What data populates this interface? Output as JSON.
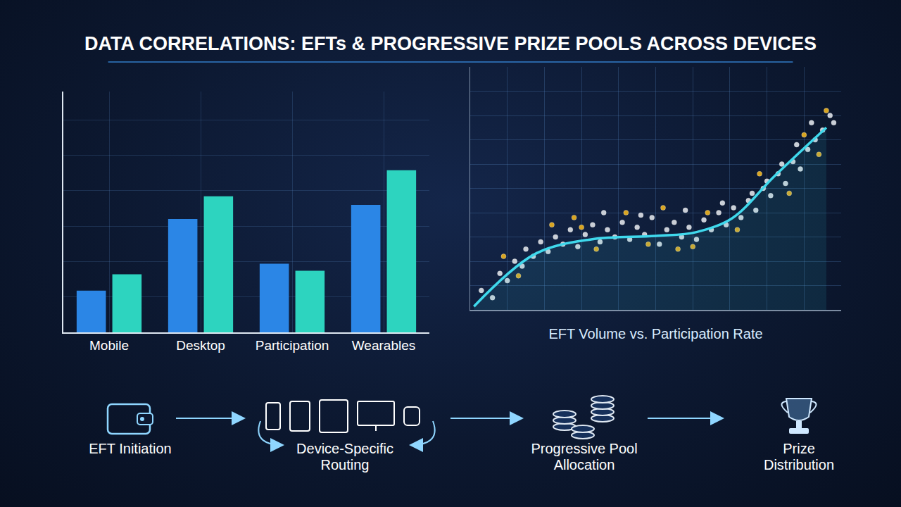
{
  "title": "DATA CORRELATIONS: EFTs & PROGRESSIVE PRIZE POOLS ACROSS DEVICES",
  "chart_data": [
    {
      "type": "bar",
      "categories": [
        "Mobile",
        "Desktop",
        "Participation",
        "Wearables"
      ],
      "series": [
        {
          "color": "#2b86e6",
          "values": [
            59,
            160,
            97,
            180
          ]
        },
        {
          "color": "#2dd4bf",
          "values": [
            82,
            192,
            87,
            229
          ]
        }
      ],
      "ylim": [
        0,
        340
      ],
      "yticks": [
        0,
        50,
        100,
        150,
        200,
        250,
        300
      ],
      "grid": true,
      "tick_labels": "x"
    },
    {
      "type": "scatter",
      "x_label": "EFT Volume vs. Participation Rate",
      "series": [
        {
          "type": "scatter",
          "marker": "circle",
          "color": "#c9ced6",
          "x": [
            3,
            6,
            8,
            10,
            12,
            14,
            15,
            17,
            19,
            21,
            23,
            25,
            27,
            29,
            31,
            33,
            35,
            37,
            39,
            41,
            43,
            45,
            47,
            49,
            51,
            53,
            55,
            57,
            59,
            61,
            63,
            65,
            67,
            69,
            71,
            73,
            75,
            77,
            79,
            81,
            83,
            85,
            87,
            89,
            91,
            93,
            95,
            97,
            98,
            92,
            88,
            84,
            80,
            76,
            36,
            46,
            58,
            68
          ],
          "values": [
            8,
            5,
            15,
            12,
            20,
            18,
            25,
            22,
            28,
            24,
            30,
            27,
            33,
            26,
            31,
            35,
            28,
            33,
            30,
            36,
            29,
            34,
            31,
            38,
            27,
            33,
            36,
            30,
            34,
            29,
            37,
            33,
            40,
            35,
            42,
            38,
            45,
            41,
            50,
            47,
            56,
            52,
            61,
            58,
            66,
            70,
            74,
            80,
            77,
            77,
            68,
            60,
            53,
            48,
            40,
            39,
            41,
            44
          ]
        },
        {
          "type": "scatter",
          "marker": "circle",
          "color": "#d9a520",
          "x": [
            9,
            13,
            22,
            28,
            34,
            42,
            48,
            52,
            60,
            64,
            72,
            78,
            86,
            90,
            94,
            96,
            30,
            56
          ],
          "values": [
            22,
            14,
            35,
            38,
            25,
            40,
            27,
            42,
            26,
            40,
            33,
            56,
            48,
            72,
            64,
            82,
            34,
            25
          ]
        },
        {
          "type": "line",
          "line_style": "solid",
          "color": "#3fd8ec",
          "x": [
            1,
            17.5,
            32.6,
            50,
            61,
            70.6,
            82,
            96
          ],
          "values": [
            1.4,
            23,
            29,
            30.4,
            32,
            37.7,
            55,
            75
          ]
        }
      ],
      "xlim": [
        0,
        100
      ],
      "ylim": [
        0,
        100
      ],
      "xticks": [
        0,
        10,
        20,
        30,
        40,
        50,
        60,
        70,
        80,
        90,
        100
      ],
      "yticks": [
        0,
        10,
        20,
        30,
        40,
        50,
        60,
        70,
        80,
        90,
        100
      ],
      "grid": true,
      "tick_labels": false
    }
  ],
  "flow": {
    "steps": [
      "EFT Initiation",
      "Device-Specific Routing",
      "Progressive Pool Allocation",
      "Prize Distribution"
    ]
  }
}
